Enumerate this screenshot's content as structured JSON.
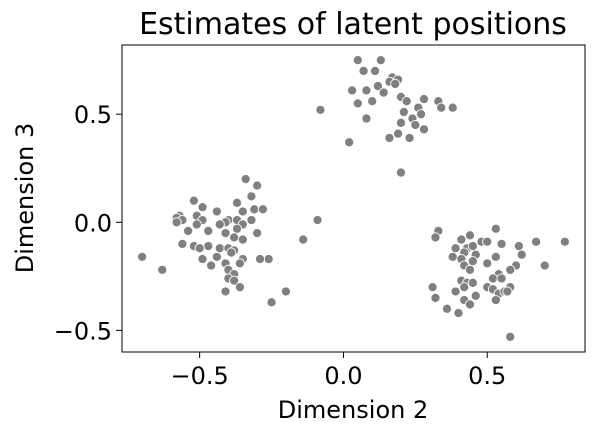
{
  "chart_data": {
    "type": "scatter",
    "title": "Estimates of latent positions",
    "xlabel": "Dimension 2",
    "ylabel": "Dimension 3",
    "xlim": [
      -0.77,
      0.84
    ],
    "ylim": [
      -0.6,
      0.82
    ],
    "xticks": [
      -0.5,
      0.0,
      0.5
    ],
    "xtick_labels": [
      "−0.5",
      "0.0",
      "0.5"
    ],
    "yticks": [
      0.5,
      0.0,
      -0.5
    ],
    "ytick_labels": [
      "0.5",
      "0.0",
      "−0.5"
    ],
    "grid": false,
    "legend": null,
    "series": [
      {
        "color": "#808080",
        "edge_color": "#ffffff",
        "points": [
          [
            0.05,
            0.75
          ],
          [
            0.13,
            0.75
          ],
          [
            0.07,
            0.7
          ],
          [
            0.11,
            0.7
          ],
          [
            0.17,
            0.67
          ],
          [
            0.19,
            0.66
          ],
          [
            0.16,
            0.65
          ],
          [
            0.18,
            0.64
          ],
          [
            0.12,
            0.63
          ],
          [
            0.03,
            0.61
          ],
          [
            0.08,
            0.61
          ],
          [
            0.14,
            0.6
          ],
          [
            0.2,
            0.58
          ],
          [
            0.28,
            0.57
          ],
          [
            0.33,
            0.56
          ],
          [
            0.1,
            0.56
          ],
          [
            0.22,
            0.56
          ],
          [
            0.05,
            0.55
          ],
          [
            0.26,
            0.53
          ],
          [
            0.34,
            0.53
          ],
          [
            -0.08,
            0.52
          ],
          [
            0.38,
            0.53
          ],
          [
            0.21,
            0.51
          ],
          [
            0.27,
            0.5
          ],
          [
            0.08,
            0.48
          ],
          [
            0.24,
            0.48
          ],
          [
            0.2,
            0.46
          ],
          [
            0.25,
            0.45
          ],
          [
            0.28,
            0.43
          ],
          [
            0.19,
            0.41
          ],
          [
            0.16,
            0.39
          ],
          [
            0.23,
            0.39
          ],
          [
            0.02,
            0.37
          ],
          [
            0.2,
            0.23
          ],
          [
            -0.34,
            0.2
          ],
          [
            -0.3,
            0.17
          ],
          [
            -0.52,
            0.1
          ],
          [
            -0.32,
            0.12
          ],
          [
            -0.37,
            0.09
          ],
          [
            -0.49,
            0.07
          ],
          [
            -0.31,
            0.06
          ],
          [
            -0.28,
            0.06
          ],
          [
            -0.35,
            0.05
          ],
          [
            -0.44,
            0.05
          ],
          [
            -0.57,
            0.03
          ],
          [
            -0.51,
            0.03
          ],
          [
            -0.58,
            0.02
          ],
          [
            -0.56,
            0.01
          ],
          [
            -0.49,
            0.01
          ],
          [
            -0.4,
            0.01
          ],
          [
            -0.37,
            0.01
          ],
          [
            -0.32,
            0.01
          ],
          [
            -0.58,
            0.0
          ],
          [
            -0.41,
            0.0
          ],
          [
            -0.51,
            -0.01
          ],
          [
            -0.35,
            -0.01
          ],
          [
            -0.43,
            -0.01
          ],
          [
            -0.47,
            -0.04
          ],
          [
            -0.37,
            -0.03
          ],
          [
            -0.54,
            -0.04
          ],
          [
            -0.41,
            -0.05
          ],
          [
            -0.3,
            -0.05
          ],
          [
            -0.38,
            -0.07
          ],
          [
            -0.35,
            -0.08
          ],
          [
            -0.56,
            -0.1
          ],
          [
            -0.52,
            -0.11
          ],
          [
            -0.47,
            -0.11
          ],
          [
            -0.5,
            -0.12
          ],
          [
            -0.43,
            -0.12
          ],
          [
            -0.4,
            -0.12
          ],
          [
            -0.38,
            -0.13
          ],
          [
            -0.39,
            -0.14
          ],
          [
            -0.44,
            -0.16
          ],
          [
            -0.49,
            -0.17
          ],
          [
            -0.35,
            -0.17
          ],
          [
            -0.26,
            -0.17
          ],
          [
            -0.29,
            -0.17
          ],
          [
            -0.7,
            -0.16
          ],
          [
            -0.41,
            -0.19
          ],
          [
            -0.36,
            -0.19
          ],
          [
            -0.46,
            -0.2
          ],
          [
            -0.4,
            -0.22
          ],
          [
            -0.63,
            -0.22
          ],
          [
            -0.38,
            -0.24
          ],
          [
            -0.4,
            -0.26
          ],
          [
            -0.38,
            -0.27
          ],
          [
            -0.36,
            -0.3
          ],
          [
            -0.41,
            -0.32
          ],
          [
            -0.2,
            -0.32
          ],
          [
            -0.25,
            -0.37
          ],
          [
            -0.14,
            -0.08
          ],
          [
            -0.09,
            0.01
          ],
          [
            0.33,
            -0.04
          ],
          [
            0.53,
            -0.03
          ],
          [
            0.32,
            -0.07
          ],
          [
            0.44,
            -0.06
          ],
          [
            0.41,
            -0.08
          ],
          [
            0.67,
            -0.09
          ],
          [
            0.77,
            -0.09
          ],
          [
            0.48,
            -0.09
          ],
          [
            0.5,
            -0.09
          ],
          [
            0.55,
            -0.1
          ],
          [
            0.61,
            -0.11
          ],
          [
            0.43,
            -0.12
          ],
          [
            0.45,
            -0.11
          ],
          [
            0.39,
            -0.12
          ],
          [
            0.42,
            -0.14
          ],
          [
            0.46,
            -0.15
          ],
          [
            0.62,
            -0.15
          ],
          [
            0.38,
            -0.16
          ],
          [
            0.53,
            -0.16
          ],
          [
            0.41,
            -0.17
          ],
          [
            0.45,
            -0.18
          ],
          [
            0.5,
            -0.19
          ],
          [
            0.42,
            -0.2
          ],
          [
            0.6,
            -0.2
          ],
          [
            0.7,
            -0.2
          ],
          [
            0.44,
            -0.22
          ],
          [
            0.58,
            -0.22
          ],
          [
            0.54,
            -0.24
          ],
          [
            0.41,
            -0.27
          ],
          [
            0.52,
            -0.26
          ],
          [
            0.55,
            -0.26
          ],
          [
            0.43,
            -0.28
          ],
          [
            0.45,
            -0.28
          ],
          [
            0.42,
            -0.3
          ],
          [
            0.58,
            -0.3
          ],
          [
            0.31,
            -0.3
          ],
          [
            0.5,
            -0.3
          ],
          [
            0.39,
            -0.32
          ],
          [
            0.52,
            -0.31
          ],
          [
            0.54,
            -0.33
          ],
          [
            0.56,
            -0.32
          ],
          [
            0.57,
            -0.32
          ],
          [
            0.32,
            -0.35
          ],
          [
            0.46,
            -0.34
          ],
          [
            0.42,
            -0.36
          ],
          [
            0.53,
            -0.36
          ],
          [
            0.36,
            -0.4
          ],
          [
            0.4,
            -0.42
          ],
          [
            0.44,
            -0.38
          ],
          [
            0.58,
            -0.53
          ]
        ]
      }
    ]
  }
}
